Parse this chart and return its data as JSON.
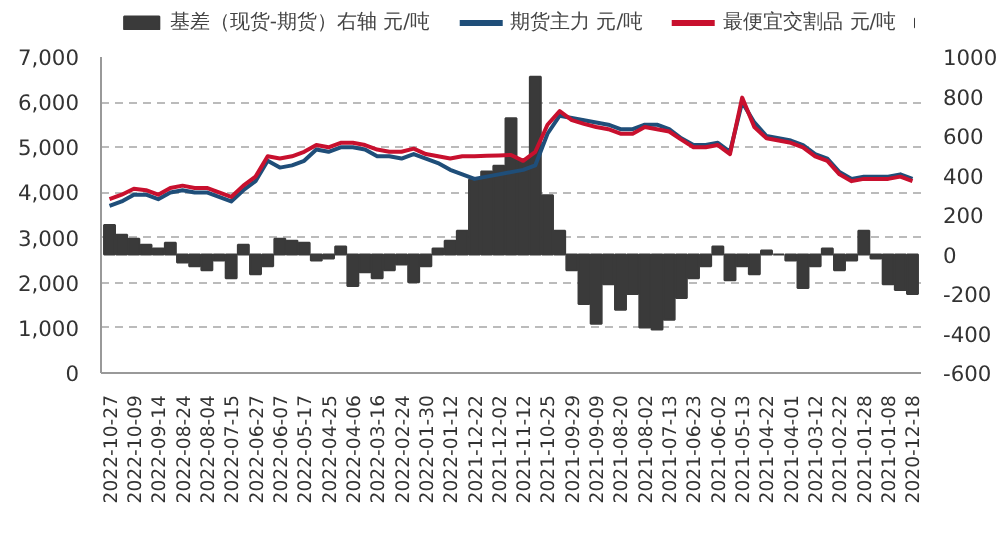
{
  "chart_data": {
    "type": "line",
    "categories": [
      "2022-10-27",
      null,
      "2022-10-09",
      null,
      "2022-09-14",
      null,
      "2022-08-24",
      null,
      "2022-08-04",
      null,
      "2022-07-15",
      null,
      "2022-06-27",
      null,
      "2022-06-07",
      null,
      "2022-05-17",
      null,
      "2022-04-25",
      null,
      "2022-04-06",
      null,
      "2022-03-16",
      null,
      "2022-02-24",
      null,
      "2022-01-30",
      null,
      "2022-01-12",
      null,
      "2021-12-22",
      null,
      "2021-12-02",
      null,
      "2021-11-12",
      null,
      "2021-10-25",
      null,
      "2021-09-29",
      null,
      "2021-09-09",
      null,
      "2021-08-20",
      null,
      "2021-08-02",
      null,
      "2021-07-13",
      null,
      "2021-06-23",
      null,
      "2021-06-02",
      null,
      "2021-05-13",
      null,
      "2021-04-22",
      null,
      "2021-04-01",
      null,
      "2021-03-12",
      null,
      "2021-02-22",
      null,
      "2021-01-28",
      null,
      "2021-01-08",
      null,
      "2020-12-18"
    ],
    "series": [
      {
        "name": "基差（现货-期货）右轴 元/吨",
        "type": "bar",
        "axis": "y2",
        "color": "#3a3a3a",
        "values": [
          150,
          100,
          80,
          50,
          30,
          60,
          -40,
          -60,
          -80,
          -30,
          -120,
          50,
          -100,
          -60,
          80,
          70,
          60,
          -30,
          -20,
          40,
          -160,
          -90,
          -120,
          -80,
          -50,
          -140,
          -60,
          30,
          70,
          120,
          380,
          420,
          450,
          690,
          480,
          900,
          300,
          120,
          -80,
          -250,
          -350,
          -150,
          -280,
          -200,
          -370,
          -380,
          -330,
          -220,
          -120,
          -60,
          40,
          -130,
          -60,
          -100,
          20,
          0,
          -30,
          -170,
          -60,
          30,
          -80,
          -30,
          120,
          -20,
          -150,
          -180,
          -200
        ]
      },
      {
        "name": "期货主力 元/吨",
        "color": "#1f4e79",
        "values": [
          3700,
          3800,
          3950,
          3950,
          3850,
          4000,
          4050,
          4000,
          4000,
          3900,
          3800,
          4050,
          4250,
          4700,
          4550,
          4600,
          4700,
          4950,
          4900,
          5000,
          5000,
          4950,
          4800,
          4800,
          4750,
          4850,
          4750,
          4650,
          4500,
          4400,
          4300,
          4350,
          4400,
          4450,
          4500,
          4600,
          5300,
          5700,
          5650,
          5600,
          5550,
          5500,
          5400,
          5400,
          5500,
          5500,
          5400,
          5200,
          5050,
          5050,
          5100,
          4900,
          6000,
          5550,
          5250,
          5200,
          5150,
          5050,
          4850,
          4750,
          4450,
          4300,
          4350,
          4350,
          4350,
          4400,
          4300
        ]
      },
      {
        "name": "最便宜交割品 元/吨",
        "color": "#c8102e",
        "values": [
          3850,
          3950,
          4080,
          4050,
          3950,
          4100,
          4150,
          4100,
          4100,
          4000,
          3900,
          4150,
          4350,
          4800,
          4750,
          4800,
          4900,
          5050,
          5000,
          5100,
          5100,
          5050,
          4950,
          4900,
          4900,
          4970,
          4850,
          4800,
          4750,
          4800,
          4800,
          4810,
          4820,
          4830,
          4700,
          4900,
          5500,
          5800,
          5600,
          5520,
          5450,
          5400,
          5300,
          5300,
          5450,
          5400,
          5350,
          5170,
          5000,
          5000,
          5050,
          4850,
          6100,
          5450,
          5200,
          5150,
          5100,
          5000,
          4800,
          4700,
          4400,
          4250,
          4300,
          4300,
          4300,
          4350,
          4250
        ]
      }
    ],
    "ylim": [
      0,
      7000
    ],
    "yticks": [
      {
        "value": 0,
        "label": "0"
      },
      {
        "value": 1000,
        "label": "1,000"
      },
      {
        "value": 2000,
        "label": "2,000"
      },
      {
        "value": 3000,
        "label": "3,000"
      },
      {
        "value": 4000,
        "label": "4,000"
      },
      {
        "value": 5000,
        "label": "5,000"
      },
      {
        "value": 6000,
        "label": "6,000"
      },
      {
        "value": 7000,
        "label": "7,000"
      }
    ],
    "y2lim": [
      -600,
      1000
    ],
    "y2ticks": [
      -600,
      -400,
      -200,
      0,
      200,
      400,
      600,
      800,
      1000
    ],
    "grid": "y",
    "legend": "top",
    "line_style": "solid",
    "marker": "none"
  }
}
